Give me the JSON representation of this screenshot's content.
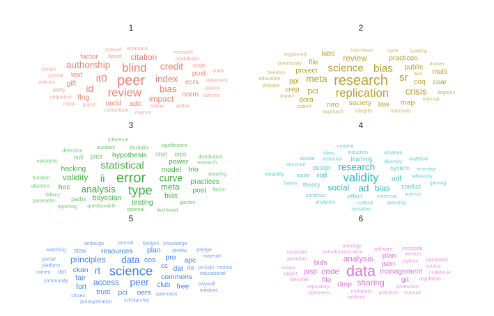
{
  "chart_data": [
    {
      "type": "wordcloud",
      "title": "1",
      "color": "#f08070",
      "words": [
        {
          "text": "peer",
          "weight": 5
        },
        {
          "text": "review",
          "weight": 4
        },
        {
          "text": "blind",
          "weight": 4
        },
        {
          "text": "it0",
          "weight": 3.5
        },
        {
          "text": "index",
          "weight": 3
        },
        {
          "text": "bias",
          "weight": 3
        },
        {
          "text": "credit",
          "weight": 3
        },
        {
          "text": "id",
          "weight": 3
        },
        {
          "text": "authorship",
          "weight": 3
        },
        {
          "text": "citation",
          "weight": 2.5
        },
        {
          "text": "impact",
          "weight": 2.5
        },
        {
          "text": "text",
          "weight": 2
        },
        {
          "text": "gift",
          "weight": 2
        },
        {
          "text": "ecrs",
          "weight": 2
        },
        {
          "text": "orcid",
          "weight": 2
        },
        {
          "text": "flag",
          "weight": 2
        },
        {
          "text": "post",
          "weight": 2
        },
        {
          "text": "factor",
          "weight": 2
        },
        {
          "text": "norm",
          "weight": 2
        },
        {
          "text": "adc",
          "weight": 2
        },
        {
          "text": "journal",
          "weight": 1
        },
        {
          "text": "ability",
          "weight": 1
        },
        {
          "text": "guest",
          "weight": 1
        },
        {
          "text": "based",
          "weight": 1
        },
        {
          "text": "online",
          "weight": 1
        },
        {
          "text": "consortium",
          "weight": 1
        },
        {
          "text": "contributor",
          "weight": 1
        },
        {
          "text": "statement",
          "weight": 1
        },
        {
          "text": "sequence",
          "weight": 1
        },
        {
          "text": "policies",
          "weight": 1
        },
        {
          "text": "papers",
          "weight": 1
        },
        {
          "text": "economic",
          "weight": 1
        },
        {
          "text": "single",
          "weight": 1
        },
        {
          "text": "author",
          "weight": 1
        },
        {
          "text": "names",
          "weight": 1
        },
        {
          "text": "metrics",
          "weight": 1
        },
        {
          "text": "manuel",
          "weight": 1
        },
        {
          "text": "research",
          "weight": 1
        },
        {
          "text": "mooc",
          "weight": 1
        },
        {
          "text": "science",
          "weight": 1
        },
        {
          "text": "unpix",
          "weight": 1
        }
      ]
    },
    {
      "type": "wordcloud",
      "title": "2",
      "color": "#b8a030",
      "words": [
        {
          "text": "research",
          "weight": 5
        },
        {
          "text": "replication",
          "weight": 4
        },
        {
          "text": "science",
          "weight": 3.5
        },
        {
          "text": "bias",
          "weight": 3.5
        },
        {
          "text": "sr",
          "weight": 3.5
        },
        {
          "text": "meta",
          "weight": 3
        },
        {
          "text": "crisis",
          "weight": 3
        },
        {
          "text": "project",
          "weight": 2
        },
        {
          "text": "review",
          "weight": 2.5
        },
        {
          "text": "public",
          "weight": 2
        },
        {
          "text": "society",
          "weight": 2
        },
        {
          "text": "coq",
          "weight": 2
        },
        {
          "text": "practices",
          "weight": 2
        },
        {
          "text": "ppi",
          "weight": 2
        },
        {
          "text": "law",
          "weight": 2
        },
        {
          "text": "pci",
          "weight": 2.5
        },
        {
          "text": "niro",
          "weight": 2
        },
        {
          "text": "file",
          "weight": 2
        },
        {
          "text": "crep",
          "weight": 2
        },
        {
          "text": "dora",
          "weight": 2
        },
        {
          "text": "coar",
          "weight": 2
        },
        {
          "text": "map",
          "weight": 2
        },
        {
          "text": "labs",
          "weight": 2
        },
        {
          "text": "multi",
          "weight": 2
        },
        {
          "text": "interviews",
          "weight": 1
        },
        {
          "text": "integrity",
          "weight": 1
        },
        {
          "text": "education",
          "weight": 1
        },
        {
          "text": "aka",
          "weight": 1
        },
        {
          "text": "approach",
          "weight": 1
        },
        {
          "text": "community",
          "weight": 1
        },
        {
          "text": "freedom",
          "weight": 1
        },
        {
          "text": "cycle",
          "weight": 1
        },
        {
          "text": "drawer",
          "weight": 1
        },
        {
          "text": "impact",
          "weight": 1
        },
        {
          "text": "internal",
          "weight": 1
        },
        {
          "text": "materials",
          "weight": 1
        },
        {
          "text": "prepare",
          "weight": 1
        },
        {
          "text": "patent",
          "weight": 1
        },
        {
          "text": "registered",
          "weight": 1
        },
        {
          "text": "building",
          "weight": 1
        },
        {
          "text": "degrees",
          "weight": 1
        }
      ]
    },
    {
      "type": "wordcloud",
      "title": "3",
      "color": "#40b040",
      "words": [
        {
          "text": "error",
          "weight": 5
        },
        {
          "text": "type",
          "weight": 4.5
        },
        {
          "text": "statistical",
          "weight": 3.5
        },
        {
          "text": "ii",
          "weight": 3.5
        },
        {
          "text": "curve",
          "weight": 3
        },
        {
          "text": "analysis",
          "weight": 3
        },
        {
          "text": "validity",
          "weight": 2.5
        },
        {
          "text": "meta",
          "weight": 2.5
        },
        {
          "text": "model",
          "weight": 2
        },
        {
          "text": "bayesian",
          "weight": 2
        },
        {
          "text": "hypothesis",
          "weight": 2
        },
        {
          "text": "hacking",
          "weight": 2
        },
        {
          "text": "power",
          "weight": 2
        },
        {
          "text": "testing",
          "weight": 2
        },
        {
          "text": "bias",
          "weight": 2
        },
        {
          "text": "practices",
          "weight": 2
        },
        {
          "text": "trio",
          "weight": 2
        },
        {
          "text": "prior",
          "weight": 1.5
        },
        {
          "text": "nhst",
          "weight": 1.5
        },
        {
          "text": "null",
          "weight": 1.5
        },
        {
          "text": "paths",
          "weight": 1.5
        },
        {
          "text": "hoc",
          "weight": 2
        },
        {
          "text": "post",
          "weight": 2
        },
        {
          "text": "orps",
          "weight": 1.5
        },
        {
          "text": "questionable",
          "weight": 1
        },
        {
          "text": "flexibility",
          "weight": 1
        },
        {
          "text": "research",
          "weight": 1
        },
        {
          "text": "stopping",
          "weight": 1
        },
        {
          "text": "optional",
          "weight": 1
        },
        {
          "text": "garden",
          "weight": 1
        },
        {
          "text": "auxiliary",
          "weight": 1
        },
        {
          "text": "fallacy",
          "weight": 1
        },
        {
          "text": "epistemic",
          "weight": 1
        },
        {
          "text": "aleatoric",
          "weight": 1
        },
        {
          "text": "significance",
          "weight": 1
        },
        {
          "text": "likelihood",
          "weight": 1
        },
        {
          "text": "distribution",
          "weight": 1
        },
        {
          "text": "detection",
          "weight": 1
        },
        {
          "text": "function",
          "weight": 1
        },
        {
          "text": "factor",
          "weight": 1
        },
        {
          "text": "inference",
          "weight": 1
        },
        {
          "text": "reporting",
          "weight": 1
        },
        {
          "text": "parameter",
          "weight": 1
        }
      ]
    },
    {
      "type": "wordcloud",
      "title": "4",
      "color": "#30b8c0",
      "words": [
        {
          "text": "validity",
          "weight": 4
        },
        {
          "text": "research",
          "weight": 3
        },
        {
          "text": "ad",
          "weight": 3
        },
        {
          "text": "social",
          "weight": 2.5
        },
        {
          "text": "bias",
          "weight": 2.5
        },
        {
          "text": "udl",
          "weight": 2
        },
        {
          "text": "rcd",
          "weight": 2
        },
        {
          "text": "system",
          "weight": 1.5
        },
        {
          "text": "design",
          "weight": 1.5
        },
        {
          "text": "theory",
          "weight": 1.5
        },
        {
          "text": "learning",
          "weight": 1.5
        },
        {
          "text": "effect",
          "weight": 1.5
        },
        {
          "text": "conflict",
          "weight": 1.5
        },
        {
          "text": "reflexivity",
          "weight": 1
        },
        {
          "text": "universal",
          "weight": 1
        },
        {
          "text": "inclusion",
          "weight": 1
        },
        {
          "text": "diversity",
          "weight": 1
        },
        {
          "text": "equity",
          "weight": 1
        },
        {
          "text": "construct",
          "weight": 1
        },
        {
          "text": "cultural",
          "weight": 1
        },
        {
          "text": "induction",
          "weight": 1
        },
        {
          "text": "incentive",
          "weight": 1
        },
        {
          "text": "situation",
          "weight": 1
        },
        {
          "text": "structure",
          "weight": 1
        },
        {
          "text": "harms",
          "weight": 1
        },
        {
          "text": "science",
          "weight": 1
        },
        {
          "text": "analyses",
          "weight": 1
        },
        {
          "text": "matthew",
          "weight": 1
        },
        {
          "text": "double",
          "weight": 1
        },
        {
          "text": "class",
          "weight": 1
        },
        {
          "text": "gaming",
          "weight": 1
        },
        {
          "text": "directory",
          "weight": 1
        },
        {
          "text": "reliability",
          "weight": 1
        },
        {
          "text": "content",
          "weight": 1
        },
        {
          "text": "sensitive",
          "weight": 1
        }
      ]
    },
    {
      "type": "wordcloud",
      "title": "5",
      "color": "#4080e8",
      "words": [
        {
          "text": "science",
          "weight": 4.5
        },
        {
          "text": "data",
          "weight": 3
        },
        {
          "text": "peer",
          "weight": 3
        },
        {
          "text": "rt",
          "weight": 3
        },
        {
          "text": "access",
          "weight": 2.5
        },
        {
          "text": "principles",
          "weight": 2.5
        },
        {
          "text": "cos",
          "weight": 2
        },
        {
          "text": "cc",
          "weight": 2
        },
        {
          "text": "commons",
          "weight": 2
        },
        {
          "text": "ckan",
          "weight": 2
        },
        {
          "text": "resources",
          "weight": 2
        },
        {
          "text": "club",
          "weight": 2
        },
        {
          "text": "fair",
          "weight": 2
        },
        {
          "text": "dat",
          "weight": 2
        },
        {
          "text": "pro",
          "weight": 2
        },
        {
          "text": "oers",
          "weight": 2
        },
        {
          "text": "trust",
          "weight": 2
        },
        {
          "text": "fort",
          "weight": 2
        },
        {
          "text": "pci",
          "weight": 2
        },
        {
          "text": "plan",
          "weight": 2
        },
        {
          "text": "free",
          "weight": 2
        },
        {
          "text": "apc",
          "weight": 2
        },
        {
          "text": "riot",
          "weight": 1.5
        },
        {
          "text": "da",
          "weight": 1.5
        },
        {
          "text": "slow",
          "weight": 1.5
        },
        {
          "text": "review",
          "weight": 1
        },
        {
          "text": "journal",
          "weight": 1
        },
        {
          "text": "educational",
          "weight": 1
        },
        {
          "text": "scholarship",
          "weight": 1
        },
        {
          "text": "openness",
          "weight": 1
        },
        {
          "text": "platform",
          "weight": 1
        },
        {
          "text": "community",
          "weight": 1
        },
        {
          "text": "badges",
          "weight": 1
        },
        {
          "text": "zenodo",
          "weight": 1
        },
        {
          "text": "paywall",
          "weight": 1
        },
        {
          "text": "preregistration",
          "weight": 1
        },
        {
          "text": "embargo",
          "weight": 1
        },
        {
          "text": "knowledge",
          "weight": 1
        },
        {
          "text": "citizen",
          "weight": 1
        },
        {
          "text": "material",
          "weight": 1
        },
        {
          "text": "romeo",
          "weight": 1
        },
        {
          "text": "watching",
          "weight": 1
        },
        {
          "text": "partial",
          "weight": 1
        },
        {
          "text": "pledge",
          "weight": 1
        },
        {
          "text": "mooca",
          "weight": 1
        },
        {
          "text": "initiative",
          "weight": 1
        }
      ]
    },
    {
      "type": "wordcloud",
      "title": "6",
      "color": "#e070d8",
      "words": [
        {
          "text": "data",
          "weight": 5.5
        },
        {
          "text": "code",
          "weight": 2.5
        },
        {
          "text": "analysis",
          "weight": 2.5
        },
        {
          "text": "sharing",
          "weight": 2.5
        },
        {
          "text": "management",
          "weight": 2
        },
        {
          "text": "json",
          "weight": 2
        },
        {
          "text": "dmp",
          "weight": 2
        },
        {
          "text": "bids",
          "weight": 2
        },
        {
          "text": "file",
          "weight": 2
        },
        {
          "text": "git",
          "weight": 2
        },
        {
          "text": "jasp",
          "weight": 2
        },
        {
          "text": "plan",
          "weight": 2
        },
        {
          "text": "pseudonymization",
          "weight": 1
        },
        {
          "text": "python",
          "weight": 1
        },
        {
          "text": "metadata",
          "weight": 1
        },
        {
          "text": "repository",
          "weight": 1
        },
        {
          "text": "protection",
          "weight": 1
        },
        {
          "text": "software",
          "weight": 1
        },
        {
          "text": "practices",
          "weight": 1
        },
        {
          "text": "identifier",
          "weight": 1
        },
        {
          "text": "artificial",
          "weight": 1
        },
        {
          "text": "paradata",
          "weight": 1
        },
        {
          "text": "ontology",
          "weight": 1
        },
        {
          "text": "regulation",
          "weight": 1
        },
        {
          "text": "review",
          "weight": 1
        },
        {
          "text": "version",
          "weight": 1
        },
        {
          "text": "object",
          "weight": 1
        },
        {
          "text": "source",
          "weight": 1
        },
        {
          "text": "openness",
          "weight": 1
        },
        {
          "text": "controller",
          "weight": 1
        },
        {
          "text": "manual",
          "weight": 1
        },
        {
          "text": "persistent",
          "weight": 1
        },
        {
          "text": "codebook",
          "weight": 1
        },
        {
          "text": "notebook",
          "weight": 1
        }
      ]
    }
  ]
}
